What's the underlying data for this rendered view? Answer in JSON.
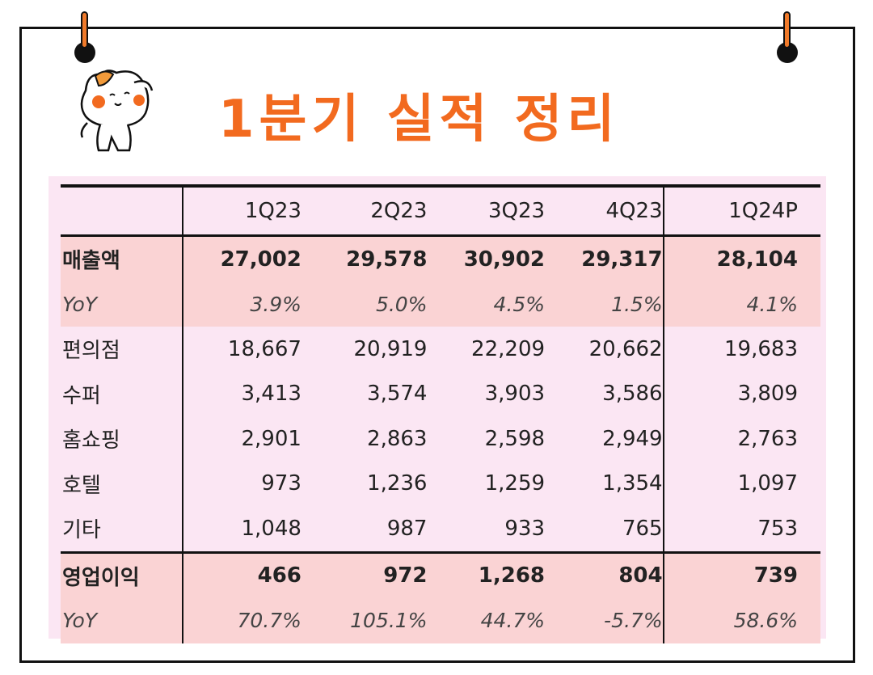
{
  "title": "1분기 실적 정리",
  "table": {
    "headers": [
      "",
      "1Q23",
      "2Q23",
      "3Q23",
      "4Q23",
      "1Q24P"
    ],
    "rows": [
      {
        "label": "매출액",
        "values": [
          "27,002",
          "29,578",
          "30,902",
          "29,317",
          "28,104"
        ]
      },
      {
        "label": "YoY",
        "values": [
          "3.9%",
          "5.0%",
          "4.5%",
          "1.5%",
          "4.1%"
        ]
      },
      {
        "label": "편의점",
        "values": [
          "18,667",
          "20,919",
          "22,209",
          "20,662",
          "19,683"
        ]
      },
      {
        "label": "수퍼",
        "values": [
          "3,413",
          "3,574",
          "3,903",
          "3,586",
          "3,809"
        ]
      },
      {
        "label": "홈쇼핑",
        "values": [
          "2,901",
          "2,863",
          "2,598",
          "2,949",
          "2,763"
        ]
      },
      {
        "label": "호텔",
        "values": [
          "973",
          "1,236",
          "1,259",
          "1,354",
          "1,097"
        ]
      },
      {
        "label": "기타",
        "values": [
          "1,048",
          "987",
          "933",
          "765",
          "753"
        ]
      },
      {
        "label": "영업이익",
        "values": [
          "466",
          "972",
          "1,268",
          "804",
          "739"
        ]
      },
      {
        "label": "YoY",
        "values": [
          "70.7%",
          "105.1%",
          "44.7%",
          "-5.7%",
          "58.6%"
        ]
      }
    ]
  },
  "colors": {
    "accent": "#f26a1f",
    "highlight": "#fad3d4",
    "panel": "#fbe6f3"
  }
}
